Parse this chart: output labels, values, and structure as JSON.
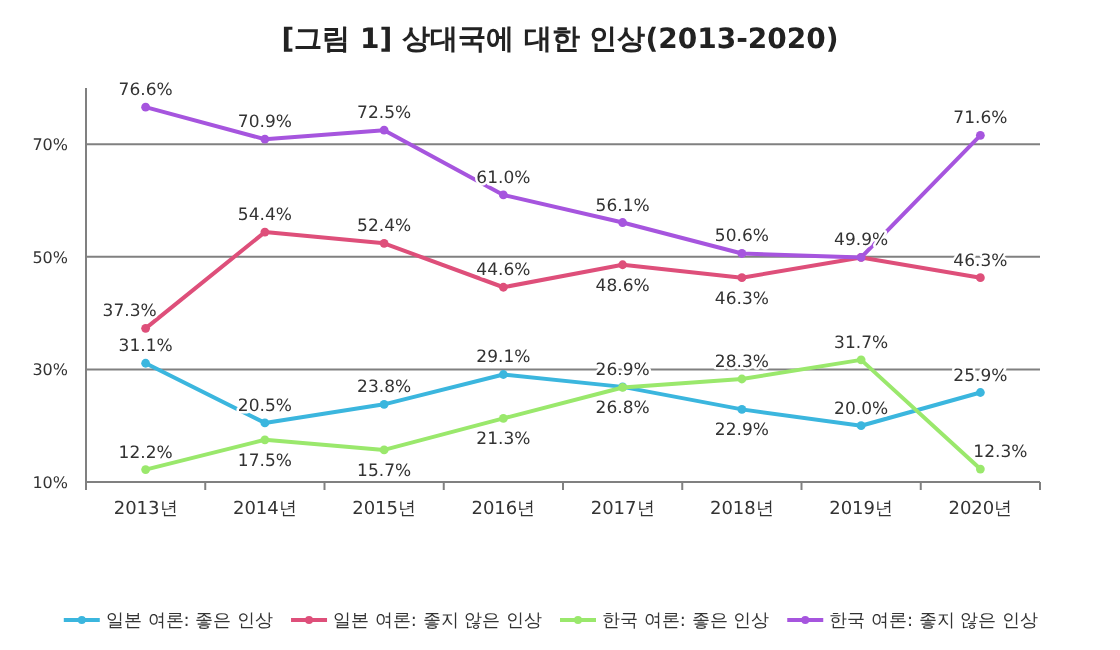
{
  "chart_data": {
    "type": "line",
    "title": "[그림 1] 상대국에 대한 인상(2013-2020)",
    "categories": [
      "2013년",
      "2014년",
      "2015년",
      "2016년",
      "2017년",
      "2018년",
      "2019년",
      "2020년"
    ],
    "series": [
      {
        "name": "일본 여론: 좋은 인상",
        "color": "#3bb6de",
        "values": [
          31.1,
          20.5,
          23.8,
          29.1,
          26.9,
          22.9,
          20.0,
          25.9
        ],
        "value_labels": [
          "31.1%",
          "20.5%",
          "23.8%",
          "29.1%",
          "26.9%",
          "22.9%",
          "20.0%",
          "25.9%"
        ]
      },
      {
        "name": "일본 여론: 좋지 않은 인상",
        "color": "#de4f7a",
        "values": [
          37.3,
          54.4,
          52.4,
          44.6,
          48.6,
          46.3,
          49.9,
          46.3
        ],
        "value_labels": [
          "37.3%",
          "54.4%",
          "52.4%",
          "44.6%",
          "48.6%",
          "46.3%",
          null,
          "46.3%"
        ]
      },
      {
        "name": "한국 여론: 좋은 인상",
        "color": "#9ae86c",
        "values": [
          12.2,
          17.5,
          15.7,
          21.3,
          26.8,
          28.3,
          31.7,
          12.3
        ],
        "value_labels": [
          "12.2%",
          "17.5%",
          "15.7%",
          "21.3%",
          "26.8%",
          "28.3%",
          "31.7%",
          "12.3%"
        ]
      },
      {
        "name": "한국 여론: 좋지 않은 인상",
        "color": "#a655de",
        "values": [
          76.6,
          70.9,
          72.5,
          61.0,
          56.1,
          50.6,
          49.9,
          71.6
        ],
        "value_labels": [
          "76.6%",
          "70.9%",
          "72.5%",
          "61.0%",
          "56.1%",
          "50.6%",
          "49.9%",
          "71.6%"
        ]
      }
    ],
    "ylim": [
      10,
      80
    ],
    "yticks": [
      {
        "value": 10,
        "label": "10%"
      },
      {
        "value": 30,
        "label": "30%"
      },
      {
        "value": 50,
        "label": "50%"
      },
      {
        "value": 70,
        "label": "70%"
      }
    ],
    "grid": "y",
    "legend": "bottom",
    "marker": "circle",
    "line_style": "solid"
  }
}
